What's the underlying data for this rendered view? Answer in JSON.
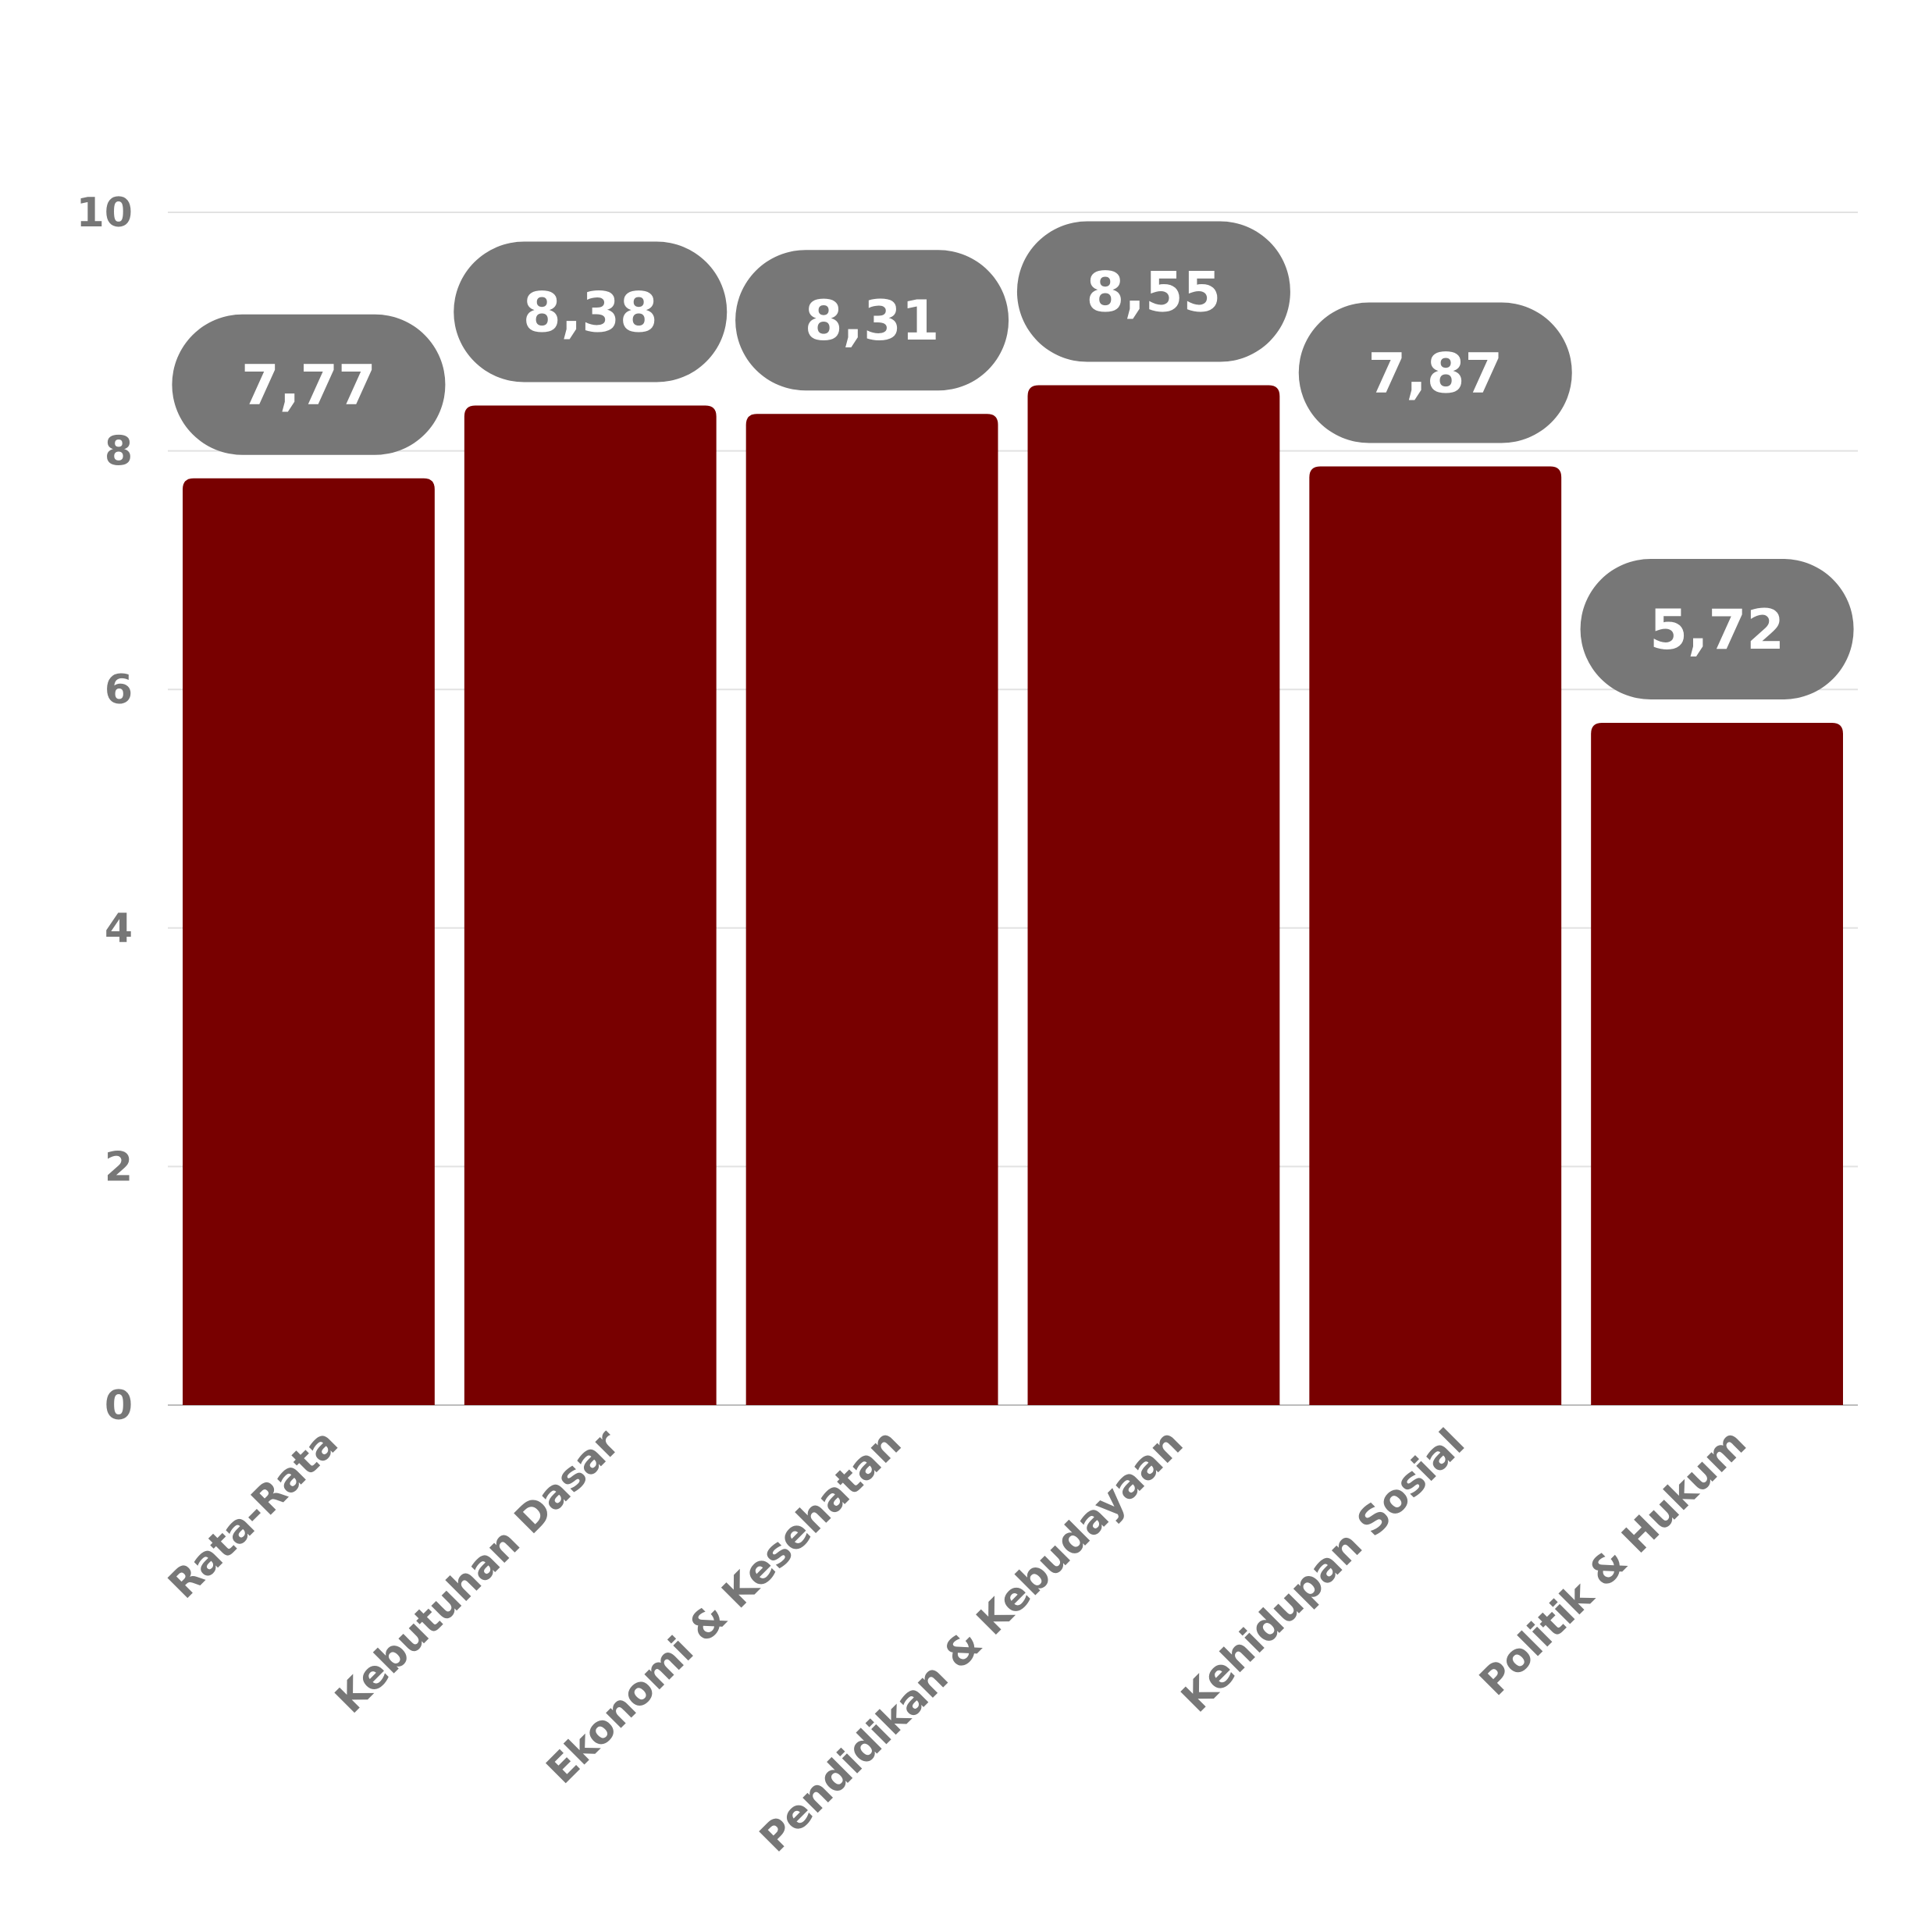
{
  "chart_data": {
    "type": "bar",
    "title": "",
    "xlabel": "",
    "ylabel": "",
    "categories": [
      "Rata-Rata",
      "Kebutuhan Dasar",
      "Ekonomi & Kesehatan",
      "Pendidikan & Kebudayaan",
      "Kehidupan Sosial",
      "Politik & Hukum"
    ],
    "values": [
      7.77,
      8.38,
      8.31,
      8.55,
      7.87,
      5.72
    ],
    "data_labels": [
      "7,77",
      "8,38",
      "8,31",
      "8,55",
      "7,87",
      "5,72"
    ],
    "ylim": [
      0,
      10
    ],
    "yticks": [
      0,
      2,
      4,
      6,
      8,
      10
    ],
    "ytick_labels": [
      "0",
      "2",
      "4",
      "6",
      "8",
      "10"
    ],
    "grid": true,
    "legend": "none",
    "colors": {
      "bar": "#780000",
      "label_bubble": "#777777",
      "label_text": "#ffffff",
      "axis_text": "#777777",
      "grid": "#e2e2e2"
    }
  }
}
